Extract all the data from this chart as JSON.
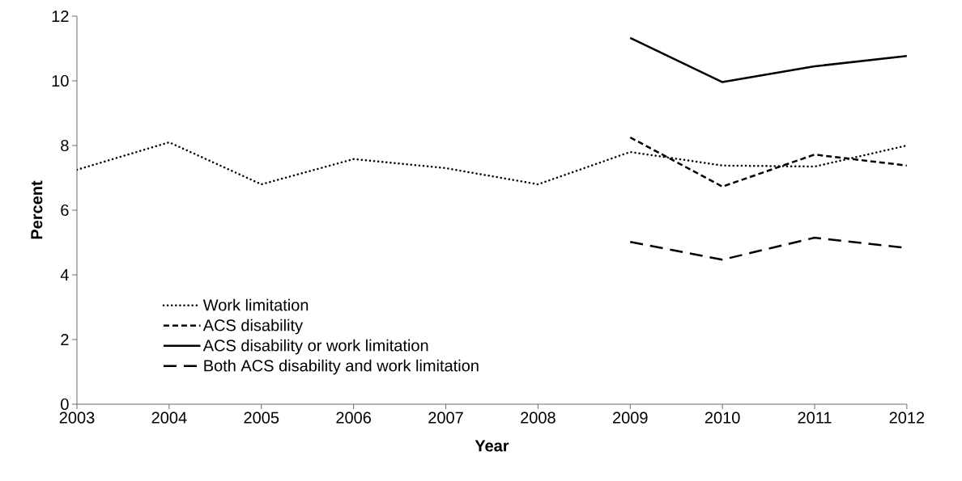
{
  "chart_data": {
    "type": "line",
    "xlabel": "Year",
    "ylabel": "Percent",
    "categories": [
      "2003",
      "2004",
      "2005",
      "2006",
      "2007",
      "2008",
      "2009",
      "2010",
      "2011",
      "2012"
    ],
    "ylim": [
      0,
      12
    ],
    "yticks": [
      0,
      2,
      4,
      6,
      8,
      10,
      12
    ],
    "grid": false,
    "legend": "left",
    "series": [
      {
        "name": "Work limitation",
        "color": "#000000",
        "line_style": "dotted",
        "values": [
          7.25,
          8.1,
          6.8,
          7.58,
          7.3,
          6.8,
          7.8,
          7.38,
          7.35,
          8.0
        ]
      },
      {
        "name": "ACS disability",
        "color": "#000000",
        "line_style": "dashed",
        "values": [
          null,
          null,
          null,
          null,
          null,
          null,
          8.25,
          6.73,
          7.72,
          7.38
        ]
      },
      {
        "name": "ACS disability or work limitation",
        "color": "#000000",
        "line_style": "solid",
        "values": [
          null,
          null,
          null,
          null,
          null,
          null,
          11.33,
          9.96,
          10.45,
          10.77
        ]
      },
      {
        "name": "Both ACS disability and work limitation",
        "color": "#000000",
        "line_style": "long dashed",
        "values": [
          null,
          null,
          null,
          null,
          null,
          null,
          5.02,
          4.47,
          5.15,
          4.83
        ]
      }
    ]
  }
}
